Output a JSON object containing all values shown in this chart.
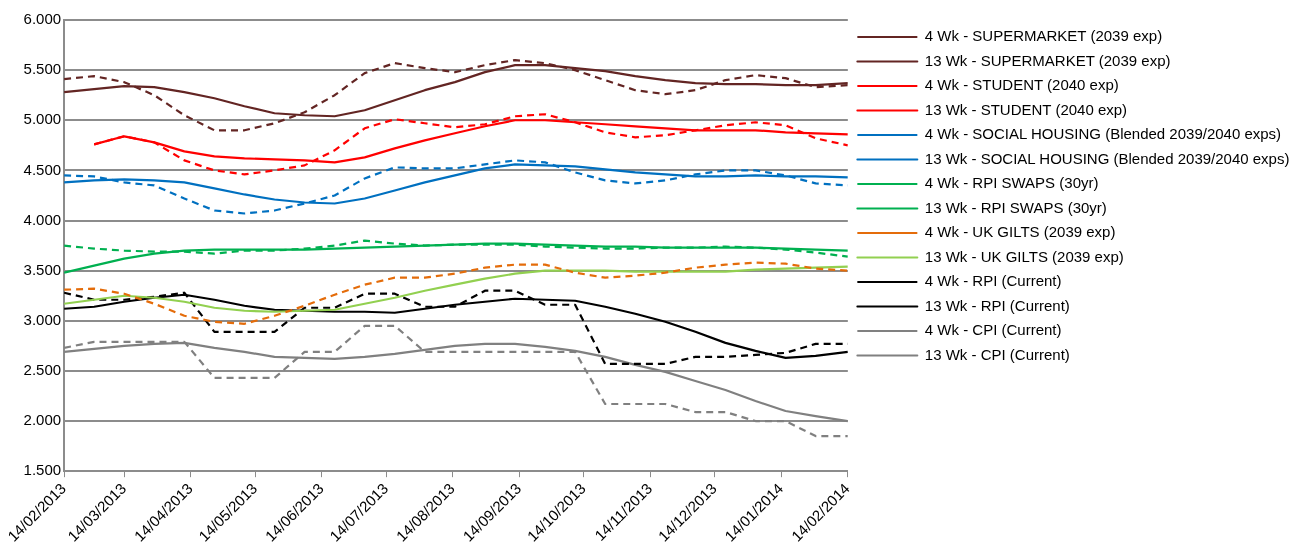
{
  "chart_data": {
    "type": "line",
    "x": [
      "2013-02-14",
      "2013-02-28",
      "2013-03-14",
      "2013-03-28",
      "2013-04-11",
      "2013-04-25",
      "2013-05-09",
      "2013-05-23",
      "2013-06-06",
      "2013-06-20",
      "2013-07-04",
      "2013-07-18",
      "2013-08-01",
      "2013-08-15",
      "2013-08-29",
      "2013-09-12",
      "2013-09-26",
      "2013-10-10",
      "2013-10-24",
      "2013-11-07",
      "2013-11-21",
      "2013-12-05",
      "2013-12-19",
      "2014-01-02",
      "2014-01-16",
      "2014-01-30",
      "2014-02-14"
    ],
    "xlim": [
      "2013-02-14",
      "2014-02-14"
    ],
    "xticks": [
      {
        "value": "2013-02-14",
        "label": "14/02/2013"
      },
      {
        "value": "2013-03-14",
        "label": "14/03/2013"
      },
      {
        "value": "2013-04-14",
        "label": "14/04/2013"
      },
      {
        "value": "2013-05-14",
        "label": "14/05/2013"
      },
      {
        "value": "2013-06-14",
        "label": "14/06/2013"
      },
      {
        "value": "2013-07-14",
        "label": "14/07/2013"
      },
      {
        "value": "2013-08-14",
        "label": "14/08/2013"
      },
      {
        "value": "2013-09-14",
        "label": "14/09/2013"
      },
      {
        "value": "2013-10-14",
        "label": "14/10/2013"
      },
      {
        "value": "2013-11-14",
        "label": "14/11/2013"
      },
      {
        "value": "2013-12-14",
        "label": "14/12/2013"
      },
      {
        "value": "2014-01-14",
        "label": "14/01/2014"
      },
      {
        "value": "2014-02-14",
        "label": "14/02/2014"
      }
    ],
    "ylim": [
      1.5,
      6
    ],
    "yticks": [
      {
        "value": 1.5,
        "label": "1.500"
      },
      {
        "value": 2,
        "label": "2.000"
      },
      {
        "value": 2.5,
        "label": "2.500"
      },
      {
        "value": 3,
        "label": "3.000"
      },
      {
        "value": 3.5,
        "label": "3.500"
      },
      {
        "value": 4,
        "label": "4.000"
      },
      {
        "value": 4.5,
        "label": "4.500"
      },
      {
        "value": 5,
        "label": "5.000"
      },
      {
        "value": 5.5,
        "label": "5.500"
      },
      {
        "value": 6,
        "label": "6.000"
      }
    ],
    "grid": "y",
    "legend": "right",
    "marker": "none",
    "series": [
      {
        "name": "4 Wk - SUPERMARKET (2039 exp)",
        "color": "#632523",
        "line_style": "dashed",
        "values": [
          5.41,
          5.44,
          5.38,
          5.25,
          5.05,
          4.9,
          4.9,
          4.97,
          5.08,
          5.25,
          5.47,
          5.57,
          5.52,
          5.48,
          5.55,
          5.6,
          5.57,
          5.5,
          5.4,
          5.3,
          5.26,
          5.3,
          5.4,
          5.45,
          5.42,
          5.33,
          5.35
        ]
      },
      {
        "name": "13 Wk - SUPERMARKET (2039 exp)",
        "color": "#632523",
        "line_style": "solid",
        "values": [
          5.28,
          5.31,
          5.34,
          5.33,
          5.28,
          5.22,
          5.14,
          5.07,
          5.05,
          5.04,
          5.1,
          5.2,
          5.3,
          5.38,
          5.48,
          5.55,
          5.55,
          5.52,
          5.49,
          5.44,
          5.4,
          5.37,
          5.36,
          5.36,
          5.35,
          5.35,
          5.37
        ]
      },
      {
        "name": "4 Wk - STUDENT (2040 exp)",
        "color": "#ff0000",
        "line_style": "dashed",
        "values": [
          null,
          4.76,
          4.84,
          4.78,
          4.6,
          4.5,
          4.46,
          4.5,
          4.55,
          4.7,
          4.92,
          5.01,
          4.97,
          4.93,
          4.96,
          5.04,
          5.06,
          4.98,
          4.88,
          4.83,
          4.85,
          4.9,
          4.95,
          4.98,
          4.95,
          4.82,
          4.75
        ]
      },
      {
        "name": "13 Wk - STUDENT (2040 exp)",
        "color": "#ff0000",
        "line_style": "solid",
        "values": [
          null,
          4.76,
          4.84,
          4.78,
          4.69,
          4.64,
          4.62,
          4.61,
          4.6,
          4.58,
          4.63,
          4.72,
          4.8,
          4.87,
          4.94,
          5.0,
          5.0,
          4.98,
          4.96,
          4.94,
          4.92,
          4.9,
          4.9,
          4.9,
          4.88,
          4.87,
          4.86
        ]
      },
      {
        "name": "4 Wk - SOCIAL HOUSING (Blended 2039/2040 exps)",
        "color": "#0070c0",
        "line_style": "dashed",
        "values": [
          4.45,
          4.44,
          4.38,
          4.35,
          4.22,
          4.1,
          4.07,
          4.1,
          4.17,
          4.25,
          4.42,
          4.53,
          4.52,
          4.52,
          4.56,
          4.6,
          4.58,
          4.48,
          4.4,
          4.37,
          4.4,
          4.46,
          4.5,
          4.5,
          4.45,
          4.37,
          4.35
        ]
      },
      {
        "name": "13 Wk - SOCIAL HOUSING (Blended 2039/2040 exps)",
        "color": "#0070c0",
        "line_style": "solid",
        "values": [
          4.38,
          4.4,
          4.41,
          4.4,
          4.38,
          4.32,
          4.26,
          4.21,
          4.18,
          4.17,
          4.22,
          4.3,
          4.38,
          4.45,
          4.52,
          4.56,
          4.55,
          4.54,
          4.51,
          4.48,
          4.46,
          4.44,
          4.44,
          4.45,
          4.44,
          4.44,
          4.43
        ]
      },
      {
        "name": "4 Wk - RPI SWAPS (30yr)",
        "color": "#00b050",
        "line_style": "dashed",
        "values": [
          3.75,
          3.72,
          3.7,
          3.69,
          3.69,
          3.67,
          3.7,
          3.7,
          3.72,
          3.75,
          3.8,
          3.77,
          3.75,
          3.76,
          3.76,
          3.76,
          3.74,
          3.73,
          3.72,
          3.72,
          3.73,
          3.73,
          3.74,
          3.73,
          3.71,
          3.68,
          3.64
        ]
      },
      {
        "name": "13 Wk - RPI SWAPS (30yr)",
        "color": "#00b050",
        "line_style": "solid",
        "values": [
          3.48,
          3.55,
          3.62,
          3.67,
          3.7,
          3.71,
          3.71,
          3.71,
          3.71,
          3.72,
          3.73,
          3.74,
          3.75,
          3.76,
          3.77,
          3.77,
          3.76,
          3.75,
          3.74,
          3.74,
          3.73,
          3.73,
          3.73,
          3.73,
          3.72,
          3.71,
          3.7
        ]
      },
      {
        "name": "4 Wk - UK GILTS (2039 exp)",
        "color": "#e46c0a",
        "line_style": "dashed",
        "values": [
          3.31,
          3.32,
          3.27,
          3.17,
          3.05,
          2.99,
          2.97,
          3.05,
          3.15,
          3.26,
          3.36,
          3.43,
          3.43,
          3.47,
          3.53,
          3.56,
          3.56,
          3.48,
          3.43,
          3.45,
          3.48,
          3.53,
          3.56,
          3.58,
          3.57,
          3.52,
          3.5
        ]
      },
      {
        "name": "13 Wk - UK GILTS (2039 exp)",
        "color": "#92d050",
        "line_style": "solid",
        "values": [
          3.17,
          3.21,
          3.25,
          3.23,
          3.19,
          3.13,
          3.1,
          3.09,
          3.1,
          3.11,
          3.17,
          3.23,
          3.3,
          3.36,
          3.42,
          3.47,
          3.5,
          3.5,
          3.5,
          3.49,
          3.49,
          3.49,
          3.49,
          3.51,
          3.52,
          3.53,
          3.54
        ]
      },
      {
        "name": "4 Wk - RPI (Current)",
        "color": "#000000",
        "line_style": "dashed",
        "values": [
          3.28,
          3.21,
          3.21,
          3.24,
          3.28,
          2.89,
          2.89,
          2.89,
          3.13,
          3.13,
          3.27,
          3.27,
          3.14,
          3.14,
          3.3,
          3.3,
          3.16,
          3.16,
          2.57,
          2.57,
          2.57,
          2.64,
          2.64,
          2.66,
          2.68,
          2.77,
          2.77
        ]
      },
      {
        "name": "13 Wk - RPI (Current)",
        "color": "#000000",
        "line_style": "solid",
        "values": [
          3.12,
          3.14,
          3.19,
          3.23,
          3.26,
          3.21,
          3.15,
          3.11,
          3.1,
          3.09,
          3.09,
          3.08,
          3.12,
          3.16,
          3.19,
          3.22,
          3.21,
          3.2,
          3.14,
          3.07,
          2.99,
          2.89,
          2.78,
          2.7,
          2.63,
          2.65,
          2.69
        ]
      },
      {
        "name": "4 Wk - CPI (Current)",
        "color": "#808080",
        "line_style": "dashed",
        "values": [
          2.73,
          2.79,
          2.79,
          2.79,
          2.79,
          2.43,
          2.43,
          2.43,
          2.69,
          2.69,
          2.95,
          2.95,
          2.69,
          2.69,
          2.69,
          2.69,
          2.69,
          2.69,
          2.17,
          2.17,
          2.17,
          2.09,
          2.09,
          2.0,
          2.0,
          1.85,
          1.85
        ]
      },
      {
        "name": "13 Wk - CPI (Current)",
        "color": "#808080",
        "line_style": "solid",
        "values": [
          2.69,
          2.72,
          2.75,
          2.77,
          2.78,
          2.73,
          2.69,
          2.64,
          2.63,
          2.62,
          2.64,
          2.67,
          2.71,
          2.75,
          2.77,
          2.77,
          2.74,
          2.7,
          2.64,
          2.56,
          2.49,
          2.4,
          2.31,
          2.2,
          2.1,
          2.05,
          2.0
        ]
      }
    ]
  }
}
